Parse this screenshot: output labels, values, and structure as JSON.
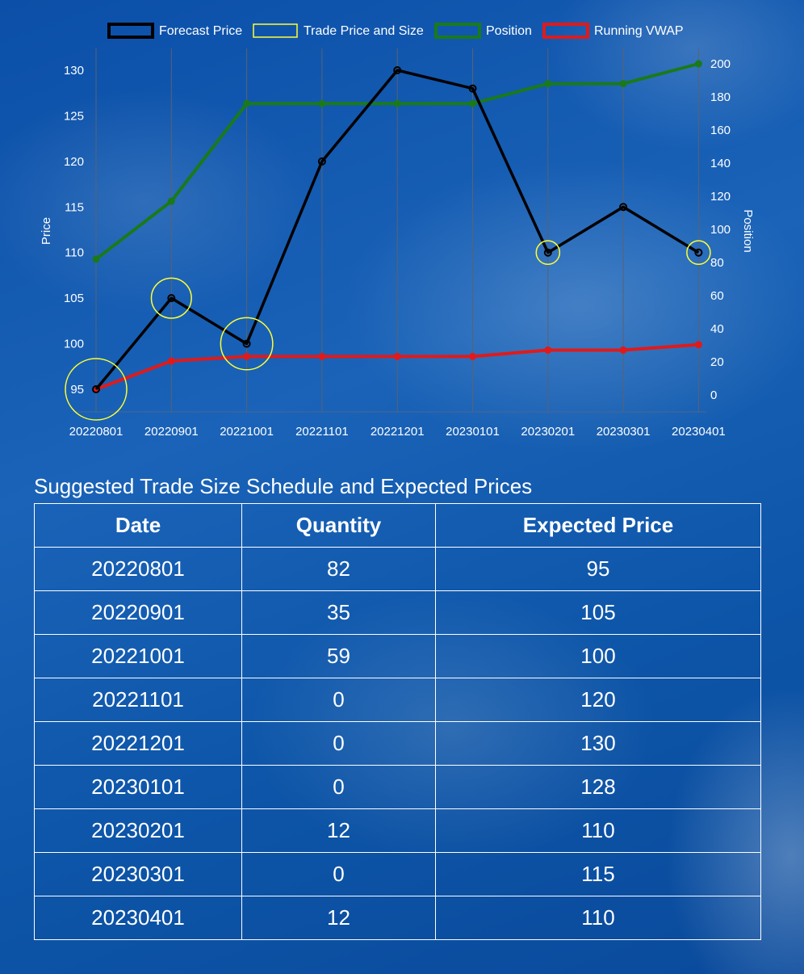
{
  "chart_data": {
    "type": "line",
    "categories": [
      "20220801",
      "20220901",
      "20221001",
      "20221101",
      "20221201",
      "20230101",
      "20230201",
      "20230301",
      "20230401"
    ],
    "y_left": {
      "label": "Price",
      "ticks": [
        95,
        100,
        105,
        110,
        115,
        120,
        125,
        130
      ],
      "range": [
        95,
        130
      ]
    },
    "y_right": {
      "label": "Position",
      "ticks": [
        0,
        20,
        40,
        60,
        80,
        100,
        120,
        140,
        160,
        180,
        200
      ],
      "range": [
        0,
        200
      ]
    },
    "legend_position": "top",
    "series": [
      {
        "name": "Forecast Price",
        "axis": "left",
        "color": "#000000",
        "values": [
          95,
          105,
          100,
          120,
          130,
          128,
          110,
          115,
          110
        ]
      },
      {
        "name": "Trade Price and Size",
        "axis": "left",
        "color": "#ffff33",
        "kind": "bubble",
        "points": [
          {
            "x": "20220801",
            "price": 95,
            "size": 82
          },
          {
            "x": "20220901",
            "price": 105,
            "size": 35
          },
          {
            "x": "20221001",
            "price": 100,
            "size": 59
          },
          {
            "x": "20230201",
            "price": 110,
            "size": 12
          },
          {
            "x": "20230401",
            "price": 110,
            "size": 12
          }
        ]
      },
      {
        "name": "Position",
        "axis": "right",
        "color": "#1a7a1a",
        "values": [
          82,
          117,
          176,
          176,
          176,
          176,
          188,
          188,
          200
        ]
      },
      {
        "name": "Running VWAP",
        "axis": "left",
        "color": "#e01a1a",
        "values": [
          95,
          98.1,
          98.6,
          98.6,
          98.6,
          98.6,
          99.3,
          99.3,
          99.9
        ]
      }
    ]
  },
  "table": {
    "title": "Suggested Trade Size Schedule and Expected Prices",
    "headers": [
      "Date",
      "Quantity",
      "Expected Price"
    ],
    "rows": [
      [
        "20220801",
        "82",
        "95"
      ],
      [
        "20220901",
        "35",
        "105"
      ],
      [
        "20221001",
        "59",
        "100"
      ],
      [
        "20221101",
        "0",
        "120"
      ],
      [
        "20221201",
        "0",
        "130"
      ],
      [
        "20230101",
        "0",
        "128"
      ],
      [
        "20230201",
        "12",
        "110"
      ],
      [
        "20230301",
        "0",
        "115"
      ],
      [
        "20230401",
        "12",
        "110"
      ]
    ]
  }
}
